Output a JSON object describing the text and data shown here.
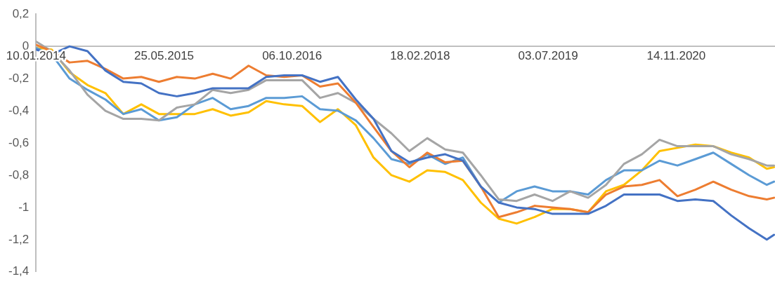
{
  "chart_data": {
    "type": "line",
    "x": [
      "2014-01-10",
      "2014-03-12",
      "2014-05-21",
      "2014-07-30",
      "2014-10-08",
      "2014-12-17",
      "2015-02-25",
      "2015-05-05",
      "2015-07-14",
      "2015-09-22",
      "2015-12-01",
      "2016-02-09",
      "2016-04-19",
      "2016-06-27",
      "2016-09-05",
      "2016-11-14",
      "2017-01-23",
      "2017-04-03",
      "2017-06-12",
      "2017-08-20",
      "2017-10-29",
      "2018-01-07",
      "2018-03-18",
      "2018-05-27",
      "2018-08-04",
      "2018-10-13",
      "2018-12-22",
      "2019-03-02",
      "2019-05-11",
      "2019-07-20",
      "2019-09-27",
      "2019-12-06",
      "2020-02-14",
      "2020-04-24",
      "2020-07-03",
      "2020-09-10",
      "2020-11-19",
      "2021-01-28",
      "2021-04-08",
      "2021-06-17",
      "2021-08-26",
      "2021-11-03",
      "2021-12-01"
    ],
    "series": [
      {
        "color": "#4472c4",
        "values": [
          -0.02,
          -0.05,
          0,
          -0.03,
          -0.15,
          -0.22,
          -0.23,
          -0.29,
          -0.31,
          -0.29,
          -0.26,
          -0.26,
          -0.26,
          -0.19,
          -0.18,
          -0.18,
          -0.22,
          -0.19,
          -0.33,
          -0.45,
          -0.65,
          -0.72,
          -0.69,
          -0.67,
          -0.71,
          -0.87,
          -0.97,
          -1.0,
          -1.01,
          -1.04,
          -1.04,
          -1.04,
          -0.99,
          -0.92,
          -0.92,
          -0.92,
          -0.96,
          -0.95,
          -0.96,
          -1.05,
          -1.13,
          -1.2,
          -1.17
        ]
      },
      {
        "color": "#ed7d31",
        "values": [
          0.01,
          -0.03,
          -0.1,
          -0.09,
          -0.14,
          -0.2,
          -0.19,
          -0.22,
          -0.19,
          -0.2,
          -0.17,
          -0.2,
          -0.12,
          -0.18,
          -0.19,
          -0.18,
          -0.25,
          -0.23,
          -0.35,
          -0.5,
          -0.65,
          -0.75,
          -0.66,
          -0.72,
          -0.71,
          -0.87,
          -1.06,
          -1.03,
          -0.99,
          -1.0,
          -1.01,
          -1.03,
          -0.92,
          -0.87,
          -0.86,
          -0.83,
          -0.93,
          -0.89,
          -0.84,
          -0.89,
          -0.93,
          -0.95,
          -0.94
        ]
      },
      {
        "color": "#a5a5a5",
        "values": [
          0.03,
          -0.03,
          -0.15,
          -0.3,
          -0.4,
          -0.45,
          -0.45,
          -0.46,
          -0.38,
          -0.36,
          -0.27,
          -0.29,
          -0.27,
          -0.21,
          -0.21,
          -0.21,
          -0.32,
          -0.29,
          -0.35,
          -0.45,
          -0.54,
          -0.65,
          -0.57,
          -0.64,
          -0.66,
          -0.8,
          -0.95,
          -0.96,
          -0.92,
          -0.96,
          -0.9,
          -0.94,
          -0.86,
          -0.73,
          -0.67,
          -0.58,
          -0.62,
          -0.62,
          -0.62,
          -0.67,
          -0.7,
          -0.74,
          -0.74
        ]
      },
      {
        "color": "#5b9bd5",
        "values": [
          -0.01,
          -0.05,
          -0.2,
          -0.27,
          -0.33,
          -0.42,
          -0.39,
          -0.46,
          -0.44,
          -0.36,
          -0.32,
          -0.39,
          -0.37,
          -0.32,
          -0.32,
          -0.31,
          -0.39,
          -0.4,
          -0.46,
          -0.57,
          -0.7,
          -0.73,
          -0.67,
          -0.73,
          -0.69,
          -0.87,
          -0.97,
          -0.9,
          -0.87,
          -0.9,
          -0.9,
          -0.92,
          -0.83,
          -0.77,
          -0.77,
          -0.71,
          -0.74,
          -0.7,
          -0.66,
          -0.73,
          -0.8,
          -0.86,
          -0.84
        ]
      },
      {
        "color": "#ffc000",
        "values": [
          -0.01,
          -0.02,
          -0.16,
          -0.24,
          -0.29,
          -0.42,
          -0.36,
          -0.42,
          -0.42,
          -0.42,
          -0.39,
          -0.43,
          -0.41,
          -0.34,
          -0.36,
          -0.37,
          -0.47,
          -0.39,
          -0.49,
          -0.69,
          -0.8,
          -0.84,
          -0.77,
          -0.78,
          -0.83,
          -0.97,
          -1.07,
          -1.1,
          -1.06,
          -1.01,
          -1.01,
          -1.03,
          -0.9,
          -0.86,
          -0.77,
          -0.65,
          -0.63,
          -0.61,
          -0.62,
          -0.66,
          -0.69,
          -0.76,
          -0.75
        ]
      }
    ],
    "xlim": [
      "2014-01-10",
      "2021-12-05"
    ],
    "xticks": [
      {
        "value": "2014-01-10",
        "label": "10.01.2014"
      },
      {
        "value": "2015-05-25",
        "label": "25.05.2015"
      },
      {
        "value": "2016-10-06",
        "label": "06.10.2016"
      },
      {
        "value": "2018-02-18",
        "label": "18.02.2018"
      },
      {
        "value": "2019-07-03",
        "label": "03.07.2019"
      },
      {
        "value": "2020-11-14",
        "label": "14.11.2020"
      }
    ],
    "ylim": [
      -1.4,
      0.2
    ],
    "yticks": [
      {
        "value": -1.4,
        "label": "-1,4"
      },
      {
        "value": -1.2,
        "label": "-1,2"
      },
      {
        "value": -1,
        "label": "-1"
      },
      {
        "value": -0.8,
        "label": "-0,8"
      },
      {
        "value": -0.6,
        "label": "-0,6"
      },
      {
        "value": -0.4,
        "label": "-0,4"
      },
      {
        "value": -0.2,
        "label": "-0,2"
      },
      0,
      {
        "value": 0.2,
        "label": "0,2"
      }
    ],
    "grid": false,
    "legend": false,
    "marker": "none",
    "line_style": "solid"
  }
}
